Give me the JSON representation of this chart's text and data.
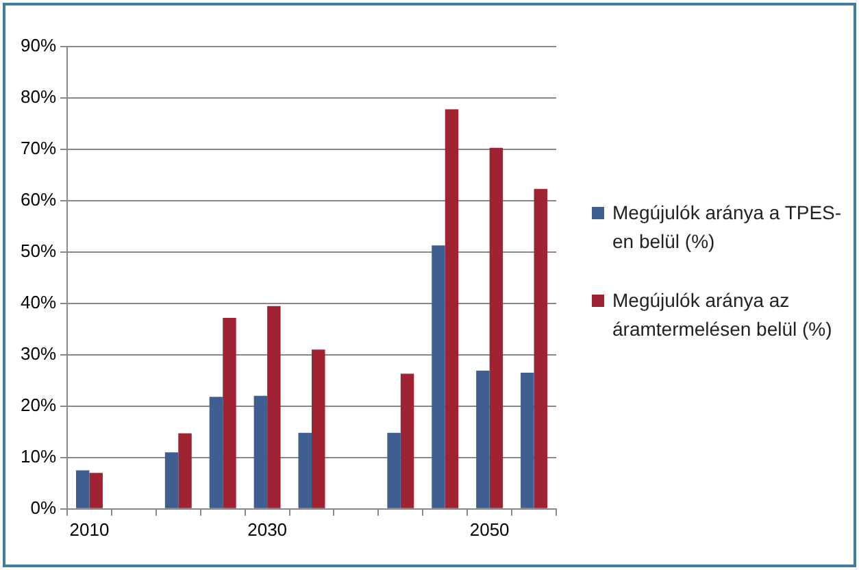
{
  "chart_data": {
    "type": "bar",
    "categories": [
      "2010",
      null,
      null,
      null,
      "2030",
      null,
      null,
      null,
      null,
      "2050",
      null
    ],
    "series": [
      {
        "name": "Megújulók aránya a TPES-en belül (%)",
        "color": "#3e5f8f",
        "values": [
          7.5,
          null,
          11,
          21.8,
          22,
          14.8,
          null,
          14.8,
          51.3,
          26.9,
          26.5
        ]
      },
      {
        "name": "Megújulók aránya az áramtermelésen belül (%)",
        "color": "#a02334",
        "values": [
          7,
          null,
          14.7,
          37.2,
          39.5,
          31,
          null,
          26.3,
          77.8,
          70.3,
          62.3
        ]
      }
    ],
    "ylim": [
      0,
      90
    ],
    "yticks": [
      {
        "value": 0,
        "label": "0%"
      },
      {
        "value": 10,
        "label": "10%"
      },
      {
        "value": 20,
        "label": "20%"
      },
      {
        "value": 30,
        "label": "30%"
      },
      {
        "value": 40,
        "label": "40%"
      },
      {
        "value": 50,
        "label": "50%"
      },
      {
        "value": 60,
        "label": "60%"
      },
      {
        "value": 70,
        "label": "70%"
      },
      {
        "value": 80,
        "label": "80%"
      },
      {
        "value": 90,
        "label": "90%"
      }
    ],
    "grid": "y",
    "legend": "right"
  }
}
